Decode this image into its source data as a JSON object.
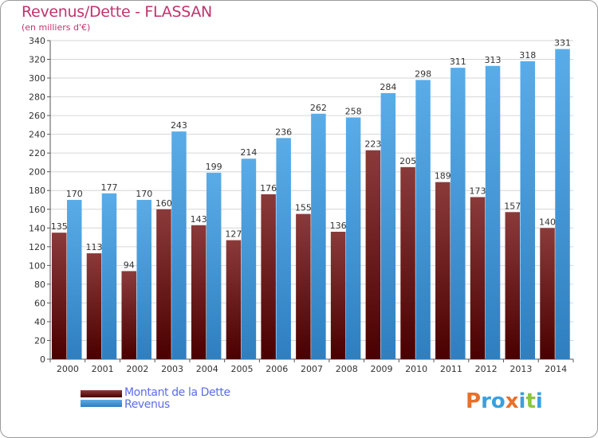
{
  "title": "Revenus/Dette - FLASSAN",
  "subtitle": "(en milliers d'€)",
  "legend": {
    "debt_label": "Montant de la Dette",
    "revenue_label": "Revenus"
  },
  "logo": {
    "letters": [
      "P",
      "r",
      "o",
      "x",
      "i",
      "t",
      "i"
    ],
    "colors": [
      "#e8702a",
      "#3aa0e0",
      "#3aa0e0",
      "#e8702a",
      "#3aa0e0",
      "#8cc63f",
      "#3aa0e0"
    ]
  },
  "colors": {
    "debt_top": "#8b3a3a",
    "debt_bottom": "#4a0000",
    "revenue_top": "#5aace8",
    "revenue_bottom": "#2f7fc0",
    "title": "#c0336d",
    "legend_text": "#5a6ee8"
  },
  "chart_data": {
    "type": "bar",
    "categories": [
      "2000",
      "2001",
      "2002",
      "2003",
      "2004",
      "2005",
      "2006",
      "2007",
      "2008",
      "2009",
      "2010",
      "2011",
      "2012",
      "2013",
      "2014"
    ],
    "series": [
      {
        "name": "Montant de la Dette",
        "values": [
          135,
          113,
          94,
          160,
          143,
          127,
          176,
          155,
          136,
          223,
          205,
          189,
          173,
          157,
          140
        ]
      },
      {
        "name": "Revenus",
        "values": [
          170,
          177,
          170,
          243,
          199,
          214,
          236,
          262,
          258,
          284,
          298,
          311,
          313,
          318,
          331
        ]
      }
    ],
    "ylim": [
      0,
      340
    ],
    "yticks": [
      "0",
      "20",
      "40",
      "60",
      "80",
      "100",
      "120",
      "140",
      "160",
      "180",
      "200",
      "220",
      "240",
      "260",
      "280",
      "300",
      "320",
      "340"
    ],
    "grid": true,
    "legend_position": "bottom-left"
  }
}
